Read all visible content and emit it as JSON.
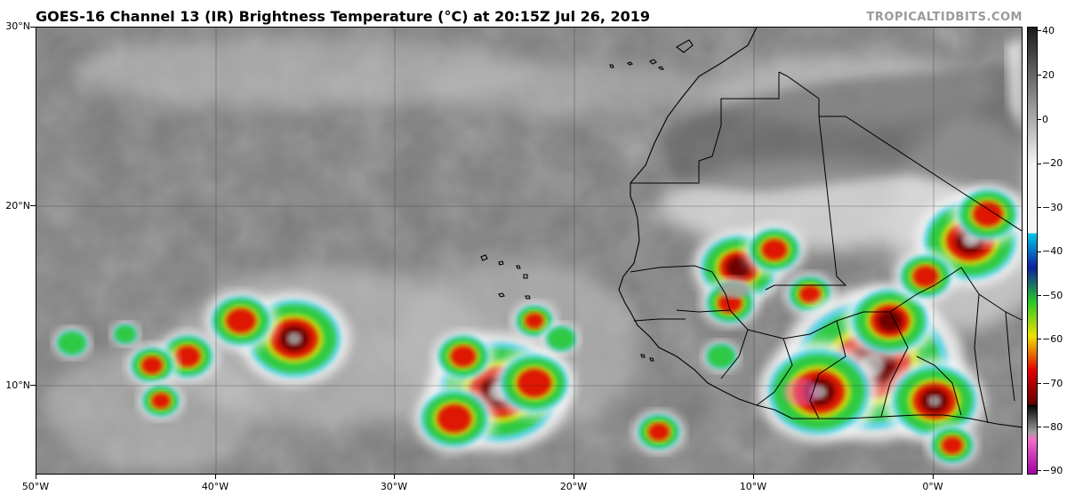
{
  "header": {
    "title": "GOES-16 Channel 13 (IR) Brightness Temperature (°C) at 20:15Z Jul 26, 2019",
    "credit": "TROPICALTIDBITS.COM"
  },
  "map": {
    "extent": {
      "lon_min": -50,
      "lon_max": 5,
      "lat_min": 5,
      "lat_max": 30
    },
    "lat_labels": [
      {
        "lat": 30,
        "label": "30°N"
      },
      {
        "lat": 20,
        "label": "20°N"
      },
      {
        "lat": 10,
        "label": "10°N"
      }
    ],
    "lon_labels": [
      {
        "lon": -50,
        "label": "50°W"
      },
      {
        "lon": -40,
        "label": "40°W"
      },
      {
        "lon": -30,
        "label": "30°W"
      },
      {
        "lon": -20,
        "label": "20°W"
      },
      {
        "lon": -10,
        "label": "10°W"
      },
      {
        "lon": 0,
        "label": "0°W"
      }
    ]
  },
  "colorbar": {
    "min": -90,
    "max": 40,
    "ticks": [
      {
        "value": 40,
        "label": "40"
      },
      {
        "value": 20,
        "label": "20"
      },
      {
        "value": 0,
        "label": "0"
      },
      {
        "value": -20,
        "label": "−20"
      },
      {
        "value": -30,
        "label": "−30"
      },
      {
        "value": -40,
        "label": "−40"
      },
      {
        "value": -50,
        "label": "−50"
      },
      {
        "value": -60,
        "label": "−60"
      },
      {
        "value": -70,
        "label": "−70"
      },
      {
        "value": -80,
        "label": "−80"
      },
      {
        "value": -90,
        "label": "−90"
      }
    ],
    "colors": {
      "warm_dark": "#1a1a1a",
      "warm_light": "#f4f4f4",
      "cyan": "#00c8e6",
      "blue": "#1020a0",
      "green": "#28c828",
      "yellow": "#f0e000",
      "red": "#e00000",
      "darkred": "#600000",
      "black": "#000000",
      "gray": "#a0a0a0",
      "pink": "#f070c8",
      "purple": "#a000a0"
    }
  }
}
